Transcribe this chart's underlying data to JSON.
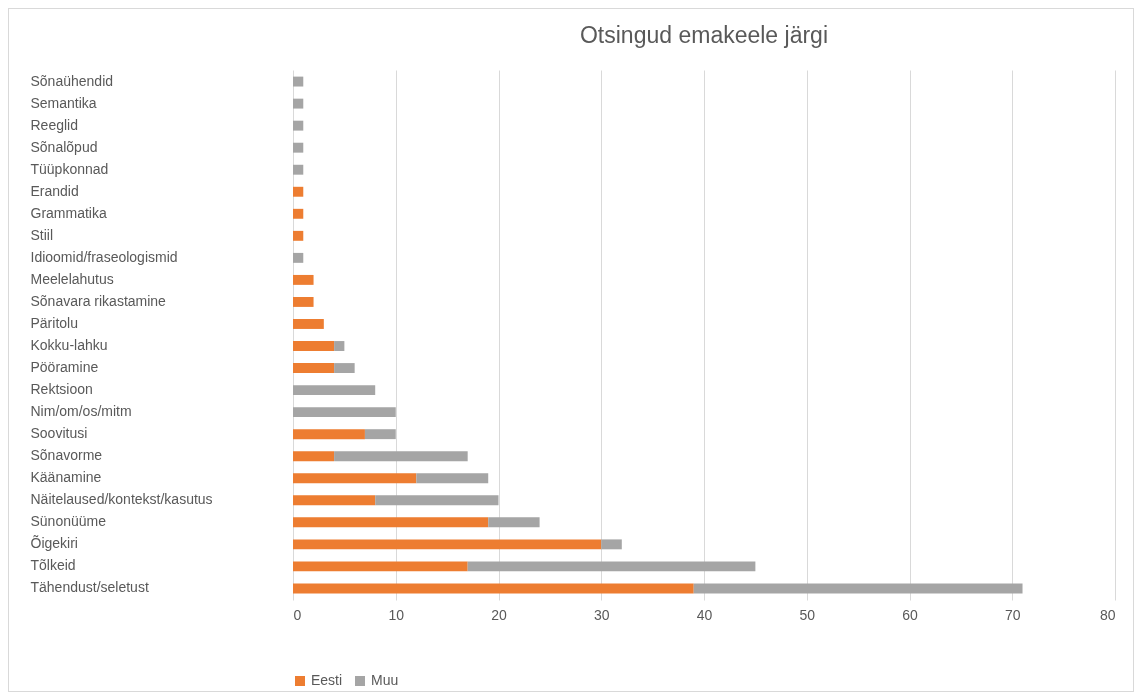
{
  "chart_data": {
    "type": "bar",
    "orientation": "horizontal",
    "stacked": true,
    "title": "Otsingud emakeele järgi",
    "categories": [
      "Sõnaühendid",
      "Semantika",
      "Reeglid",
      "Sõnalõpud",
      "Tüüpkonnad",
      "Erandid",
      "Grammatika",
      "Stiil",
      "Idioomid/fraseologismid",
      "Meelelahutus",
      "Sõnavara rikastamine",
      "Päritolu",
      "Kokku-lahku",
      "Pööramine",
      "Rektsioon",
      "Nim/om/os/mitm",
      "Soovitusi",
      "Sõnavorme",
      "Käänamine",
      "Näitelaused/kontekst/kasutus",
      "Sünonüüme",
      "Õigekiri",
      "Tõlkeid",
      "Tähendust/seletust"
    ],
    "series": [
      {
        "name": "Eesti",
        "color": "#ed7d31",
        "values": [
          0,
          0,
          0,
          0,
          0,
          1,
          1,
          1,
          0,
          2,
          2,
          3,
          4,
          4,
          0,
          0,
          7,
          4,
          12,
          8,
          19,
          30,
          17,
          39
        ]
      },
      {
        "name": "Muu",
        "color": "#a5a5a5",
        "values": [
          1,
          1,
          1,
          1,
          1,
          0,
          0,
          0,
          1,
          0,
          0,
          0,
          1,
          2,
          8,
          10,
          3,
          13,
          7,
          12,
          5,
          2,
          28,
          32
        ]
      }
    ],
    "xlim": [
      0,
      80
    ],
    "xticks": [
      0,
      10,
      20,
      30,
      40,
      50,
      60,
      70,
      80
    ],
    "grid": "x",
    "legend": "bottom"
  }
}
